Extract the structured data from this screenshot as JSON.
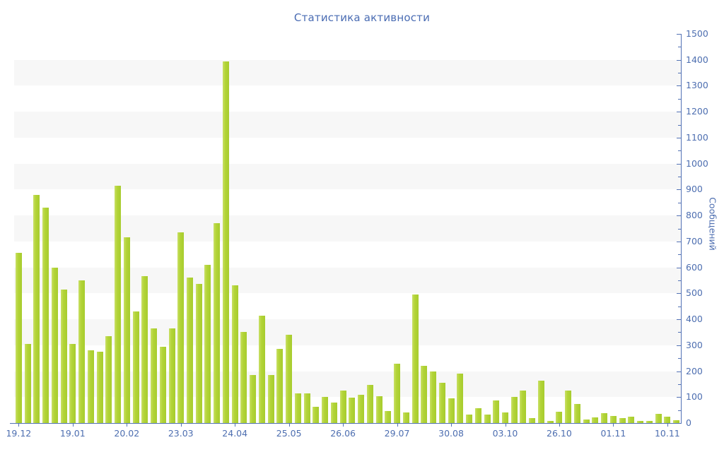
{
  "chart_data": {
    "type": "bar",
    "title": "Статистика активности",
    "ylabel": "Сообщений",
    "ylim": [
      0,
      1500
    ],
    "y_major_step": 100,
    "y_minor_step": 50,
    "y_tick_labels": [
      "0",
      "100",
      "200",
      "300",
      "400",
      "500",
      "600",
      "700",
      "800",
      "900",
      "1000",
      "1100",
      "1200",
      "1300",
      "1400",
      "1500"
    ],
    "legend": "none",
    "grid": "alternating horizontal background bands every 100 units",
    "stripe_band_starts": [
      100,
      300,
      500,
      700,
      900,
      1100,
      1300
    ],
    "x_ticks": [
      {
        "label": "19.12",
        "bar": 0
      },
      {
        "label": "19.01",
        "bar": 6
      },
      {
        "label": "20.02",
        "bar": 12
      },
      {
        "label": "23.03",
        "bar": 18
      },
      {
        "label": "24.04",
        "bar": 24
      },
      {
        "label": "25.05",
        "bar": 30
      },
      {
        "label": "26.06",
        "bar": 36
      },
      {
        "label": "29.07",
        "bar": 42
      },
      {
        "label": "30.08",
        "bar": 48
      },
      {
        "label": "03.10",
        "bar": 54
      },
      {
        "label": "26.10",
        "bar": 60
      },
      {
        "label": "01.11",
        "bar": 66
      },
      {
        "label": "10.11",
        "bar": 72
      }
    ],
    "values": [
      655,
      305,
      880,
      830,
      600,
      515,
      305,
      550,
      280,
      275,
      335,
      915,
      715,
      430,
      565,
      365,
      295,
      365,
      735,
      560,
      535,
      610,
      770,
      1395,
      530,
      350,
      185,
      415,
      185,
      285,
      340,
      113,
      113,
      63,
      100,
      80,
      125,
      97,
      110,
      147,
      104,
      45,
      230,
      40,
      495,
      220,
      198,
      156,
      95,
      190,
      32,
      56,
      32,
      88,
      41,
      100,
      124,
      20,
      163,
      9,
      43,
      125,
      74,
      14,
      23,
      38,
      26,
      20,
      25,
      7,
      9,
      36,
      25,
      12
    ],
    "colors": {
      "bar": "#b3d438",
      "bar_highlight": "#c9e067",
      "bar_shade": "#a7cc2e",
      "axis_line": "#5372b5",
      "tick_text": "#4d6eb0",
      "title_text": "#4a6cb3",
      "stripe": "#f7f7f7",
      "background": "#ffffff"
    }
  }
}
